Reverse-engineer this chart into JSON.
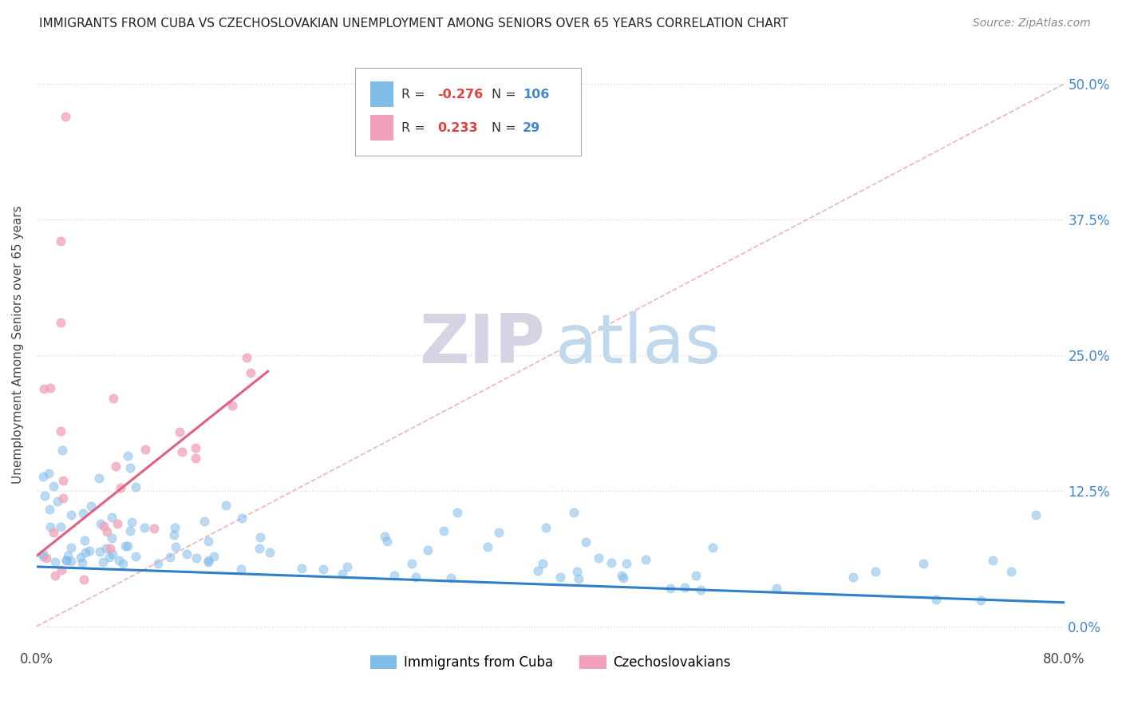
{
  "title": "IMMIGRANTS FROM CUBA VS CZECHOSLOVAKIAN UNEMPLOYMENT AMONG SENIORS OVER 65 YEARS CORRELATION CHART",
  "source": "Source: ZipAtlas.com",
  "ylabel": "Unemployment Among Seniors over 65 years",
  "ytick_vals": [
    0.0,
    0.125,
    0.25,
    0.375,
    0.5
  ],
  "ytick_labels": [
    "0.0%",
    "12.5%",
    "25.0%",
    "37.5%",
    "50.0%"
  ],
  "xlim": [
    0.0,
    0.8
  ],
  "ylim": [
    -0.02,
    0.54
  ],
  "blue_color": "#80bce8",
  "pink_color": "#f0a0b8",
  "blue_line_color": "#3080c8",
  "pink_line_color": "#e06080",
  "diag_line_color": "#e8a0b0",
  "grid_color": "#d8d8d8",
  "watermark_zip_color": "#d8d8e8",
  "watermark_atlas_color": "#c8dce8",
  "legend_R1": "-0.276",
  "legend_N1": "106",
  "legend_R2": "0.233",
  "legend_N2": "29",
  "blue_line_x": [
    0.0,
    0.8
  ],
  "blue_line_y": [
    0.055,
    0.022
  ],
  "pink_line_x": [
    0.0,
    0.18
  ],
  "pink_line_y": [
    0.065,
    0.235
  ],
  "diag_line_x": [
    0.0,
    0.8
  ],
  "diag_line_y": [
    0.0,
    0.5
  ],
  "background_color": "#ffffff"
}
